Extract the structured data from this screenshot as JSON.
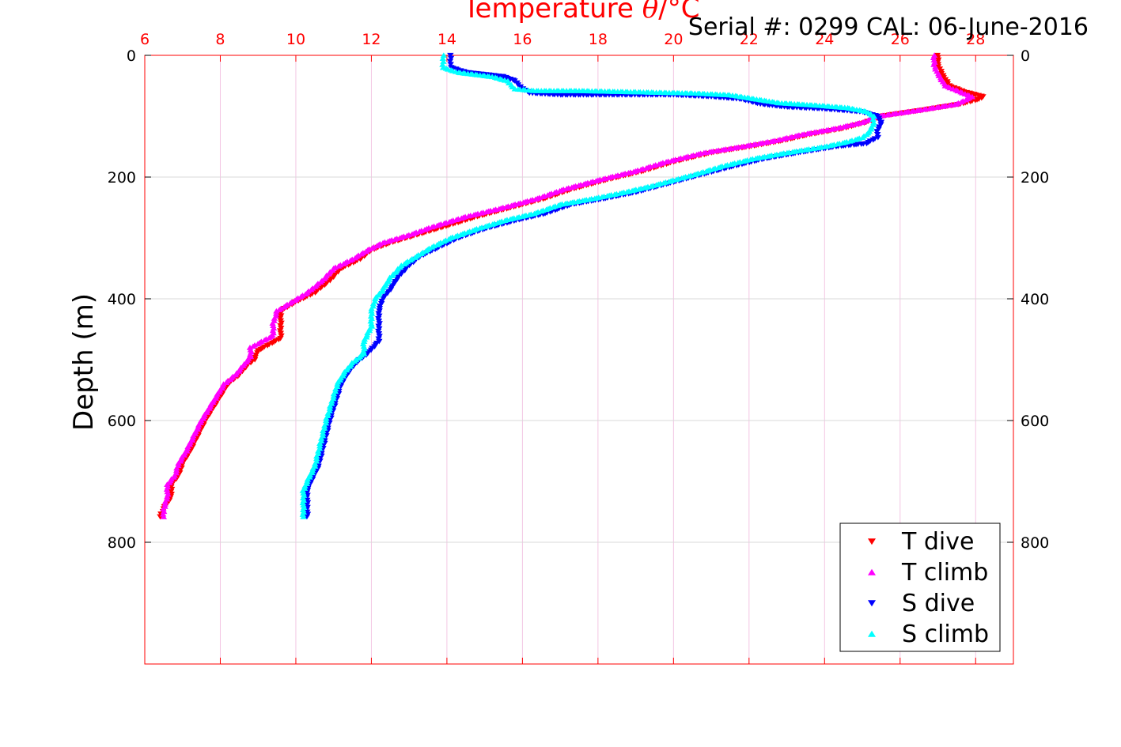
{
  "serial_text": "Serial #: 0299 CAL: 06-June-2016",
  "chart_data": {
    "type": "scatter",
    "title": "Temperature θ/°C",
    "title_prefix": "Temperature ",
    "title_theta": "θ",
    "title_suffix": "/°C",
    "ylabel": "Depth (m)",
    "xlim": [
      6,
      29
    ],
    "ylim": [
      1000,
      0
    ],
    "y_reversed": true,
    "xticks": [
      6,
      8,
      10,
      12,
      14,
      16,
      18,
      20,
      22,
      24,
      26,
      28
    ],
    "xtick_labels": [
      "6",
      "8",
      "10",
      "12",
      "14",
      "16",
      "18",
      "20",
      "22",
      "24",
      "26",
      "28"
    ],
    "yticks": [
      0,
      200,
      400,
      600,
      800
    ],
    "ytick_labels": [
      "0",
      "200",
      "400",
      "600",
      "800"
    ],
    "grid": true,
    "legend_position": "bottom-right",
    "colors": {
      "t_axis": "#ff0000",
      "grid_x": "#f3c6e3",
      "grid_y": "#d9d9d9"
    },
    "series": [
      {
        "name": "T dive",
        "marker": "triangle-down",
        "color": "#ff0000",
        "points": [
          [
            27.0,
            0
          ],
          [
            27.0,
            15
          ],
          [
            27.1,
            30
          ],
          [
            27.3,
            50
          ],
          [
            27.7,
            60
          ],
          [
            28.2,
            68
          ],
          [
            28.1,
            72
          ],
          [
            27.6,
            80
          ],
          [
            26.6,
            90
          ],
          [
            25.5,
            100
          ],
          [
            25.1,
            110
          ],
          [
            24.5,
            120
          ],
          [
            23.6,
            130
          ],
          [
            22.9,
            140
          ],
          [
            22.0,
            150
          ],
          [
            21.0,
            160
          ],
          [
            20.0,
            175
          ],
          [
            19.2,
            190
          ],
          [
            18.2,
            205
          ],
          [
            17.3,
            220
          ],
          [
            16.6,
            235
          ],
          [
            15.7,
            250
          ],
          [
            14.8,
            265
          ],
          [
            13.9,
            282
          ],
          [
            13.2,
            295
          ],
          [
            12.5,
            308
          ],
          [
            12.0,
            320
          ],
          [
            11.7,
            335
          ],
          [
            11.2,
            350
          ],
          [
            10.9,
            370
          ],
          [
            10.5,
            390
          ],
          [
            10.0,
            405
          ],
          [
            9.6,
            420
          ],
          [
            9.6,
            440
          ],
          [
            9.6,
            465
          ],
          [
            9.0,
            485
          ],
          [
            8.9,
            500
          ],
          [
            8.7,
            510
          ],
          [
            8.5,
            525
          ],
          [
            8.2,
            540
          ],
          [
            8.0,
            560
          ],
          [
            7.8,
            580
          ],
          [
            7.6,
            600
          ],
          [
            7.4,
            625
          ],
          [
            7.2,
            650
          ],
          [
            7.0,
            670
          ],
          [
            6.9,
            690
          ],
          [
            6.7,
            705
          ],
          [
            6.7,
            725
          ],
          [
            6.5,
            745
          ],
          [
            6.4,
            758
          ]
        ]
      },
      {
        "name": "T climb",
        "marker": "triangle-up",
        "color": "#ff00ff",
        "points": [
          [
            26.9,
            0
          ],
          [
            26.9,
            15
          ],
          [
            27.0,
            30
          ],
          [
            27.2,
            50
          ],
          [
            27.6,
            60
          ],
          [
            27.9,
            68
          ],
          [
            27.5,
            80
          ],
          [
            26.5,
            90
          ],
          [
            25.4,
            100
          ],
          [
            25.0,
            110
          ],
          [
            24.3,
            120
          ],
          [
            23.4,
            130
          ],
          [
            22.7,
            140
          ],
          [
            21.8,
            150
          ],
          [
            20.8,
            160
          ],
          [
            19.8,
            175
          ],
          [
            19.0,
            190
          ],
          [
            18.0,
            205
          ],
          [
            17.1,
            220
          ],
          [
            16.4,
            235
          ],
          [
            15.5,
            250
          ],
          [
            14.5,
            265
          ],
          [
            13.6,
            282
          ],
          [
            13.0,
            295
          ],
          [
            12.3,
            308
          ],
          [
            11.9,
            320
          ],
          [
            11.5,
            335
          ],
          [
            11.0,
            350
          ],
          [
            10.7,
            370
          ],
          [
            10.3,
            390
          ],
          [
            9.9,
            405
          ],
          [
            9.5,
            420
          ],
          [
            9.4,
            440
          ],
          [
            9.4,
            460
          ],
          [
            8.8,
            480
          ],
          [
            8.8,
            495
          ],
          [
            8.6,
            510
          ],
          [
            8.4,
            525
          ],
          [
            8.1,
            540
          ],
          [
            7.9,
            560
          ],
          [
            7.7,
            580
          ],
          [
            7.5,
            600
          ],
          [
            7.3,
            625
          ],
          [
            7.1,
            650
          ],
          [
            6.9,
            670
          ],
          [
            6.8,
            690
          ],
          [
            6.6,
            705
          ],
          [
            6.6,
            725
          ],
          [
            6.5,
            745
          ],
          [
            6.5,
            758
          ]
        ]
      },
      {
        "name": "S dive",
        "marker": "triangle-down",
        "color": "#0000ff",
        "points": [
          [
            14.1,
            0
          ],
          [
            14.1,
            10
          ],
          [
            14.1,
            20
          ],
          [
            14.5,
            28
          ],
          [
            15.5,
            35
          ],
          [
            15.8,
            42
          ],
          [
            16.0,
            55
          ],
          [
            16.2,
            62
          ],
          [
            17.0,
            65
          ],
          [
            18.5,
            65
          ],
          [
            20.0,
            65
          ],
          [
            21.0,
            68
          ],
          [
            21.8,
            72
          ],
          [
            22.3,
            80
          ],
          [
            23.0,
            85
          ],
          [
            24.0,
            88
          ],
          [
            25.0,
            93
          ],
          [
            25.4,
            100
          ],
          [
            25.5,
            110
          ],
          [
            25.4,
            125
          ],
          [
            25.4,
            135
          ],
          [
            25.1,
            145
          ],
          [
            24.3,
            150
          ],
          [
            23.3,
            160
          ],
          [
            22.4,
            170
          ],
          [
            21.6,
            182
          ],
          [
            20.8,
            195
          ],
          [
            20.2,
            205
          ],
          [
            19.6,
            215
          ],
          [
            19.0,
            225
          ],
          [
            18.2,
            235
          ],
          [
            17.3,
            245
          ],
          [
            16.6,
            260
          ],
          [
            15.9,
            270
          ],
          [
            15.0,
            285
          ],
          [
            14.3,
            300
          ],
          [
            13.8,
            315
          ],
          [
            13.3,
            330
          ],
          [
            13.0,
            345
          ],
          [
            12.7,
            365
          ],
          [
            12.5,
            385
          ],
          [
            12.3,
            400
          ],
          [
            12.2,
            420
          ],
          [
            12.2,
            445
          ],
          [
            12.2,
            470
          ],
          [
            11.9,
            490
          ],
          [
            11.6,
            505
          ],
          [
            11.4,
            520
          ],
          [
            11.2,
            540
          ],
          [
            11.1,
            560
          ],
          [
            11.0,
            580
          ],
          [
            10.9,
            600
          ],
          [
            10.8,
            625
          ],
          [
            10.7,
            650
          ],
          [
            10.6,
            675
          ],
          [
            10.4,
            700
          ],
          [
            10.3,
            715
          ],
          [
            10.3,
            735
          ],
          [
            10.3,
            758
          ]
        ]
      },
      {
        "name": "S climb",
        "marker": "triangle-up",
        "color": "#00ffff",
        "points": [
          [
            13.9,
            0
          ],
          [
            13.9,
            10
          ],
          [
            13.9,
            20
          ],
          [
            14.3,
            28
          ],
          [
            15.2,
            35
          ],
          [
            15.6,
            42
          ],
          [
            15.8,
            55
          ],
          [
            16.3,
            58
          ],
          [
            17.5,
            58
          ],
          [
            19.0,
            60
          ],
          [
            20.5,
            62
          ],
          [
            21.5,
            65
          ],
          [
            22.2,
            72
          ],
          [
            22.8,
            78
          ],
          [
            23.8,
            82
          ],
          [
            24.6,
            86
          ],
          [
            25.1,
            92
          ],
          [
            25.3,
            100
          ],
          [
            25.3,
            110
          ],
          [
            25.2,
            125
          ],
          [
            25.0,
            135
          ],
          [
            24.6,
            142
          ],
          [
            24.0,
            150
          ],
          [
            23.0,
            160
          ],
          [
            22.1,
            170
          ],
          [
            21.3,
            182
          ],
          [
            20.6,
            195
          ],
          [
            20.0,
            205
          ],
          [
            19.4,
            215
          ],
          [
            18.7,
            225
          ],
          [
            17.9,
            235
          ],
          [
            17.0,
            245
          ],
          [
            16.3,
            260
          ],
          [
            15.6,
            270
          ],
          [
            14.8,
            285
          ],
          [
            14.1,
            300
          ],
          [
            13.6,
            315
          ],
          [
            13.2,
            330
          ],
          [
            12.8,
            345
          ],
          [
            12.5,
            365
          ],
          [
            12.3,
            385
          ],
          [
            12.1,
            400
          ],
          [
            12.0,
            420
          ],
          [
            12.0,
            445
          ],
          [
            11.8,
            470
          ],
          [
            11.8,
            490
          ],
          [
            11.5,
            505
          ],
          [
            11.3,
            520
          ],
          [
            11.1,
            540
          ],
          [
            11.0,
            560
          ],
          [
            10.9,
            580
          ],
          [
            10.8,
            600
          ],
          [
            10.7,
            625
          ],
          [
            10.6,
            650
          ],
          [
            10.5,
            675
          ],
          [
            10.3,
            700
          ],
          [
            10.2,
            715
          ],
          [
            10.2,
            735
          ],
          [
            10.2,
            758
          ]
        ]
      }
    ]
  }
}
